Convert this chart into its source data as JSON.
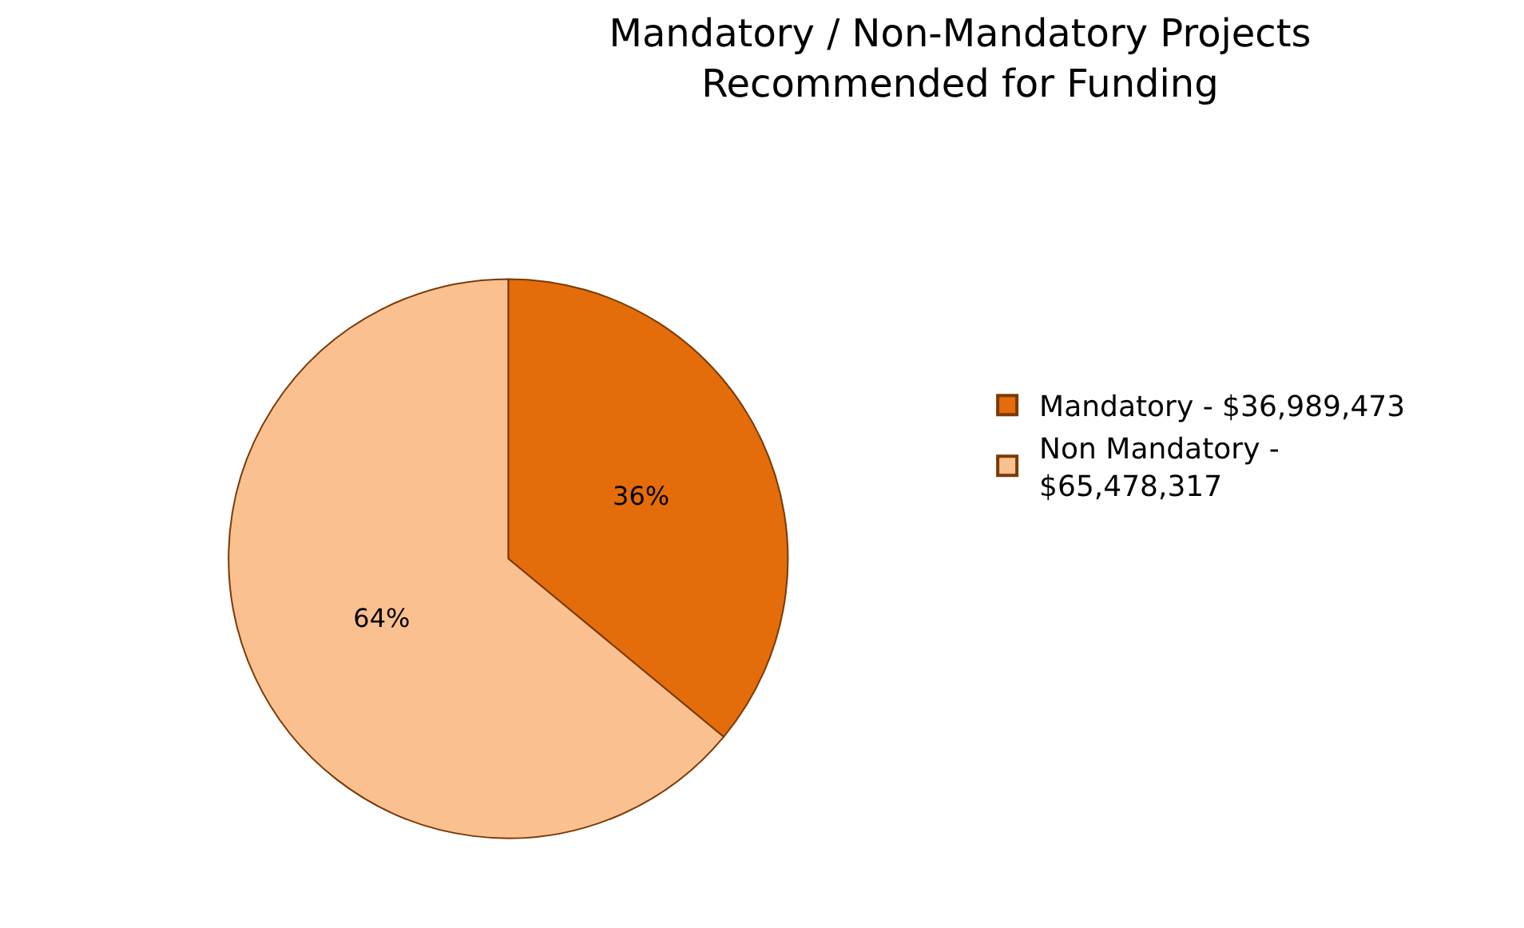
{
  "chart_data": {
    "type": "pie",
    "title": "Mandatory / Non-Mandatory Projects\nRecommended for Funding",
    "categories": [
      "Mandatory - $36,989,473",
      "Non Mandatory - $65,478,317"
    ],
    "values": [
      36,
      64
    ],
    "value_labels": [
      "36%",
      "64%"
    ],
    "colors": [
      "#e46c0a",
      "#fac090"
    ],
    "legend": "right"
  }
}
